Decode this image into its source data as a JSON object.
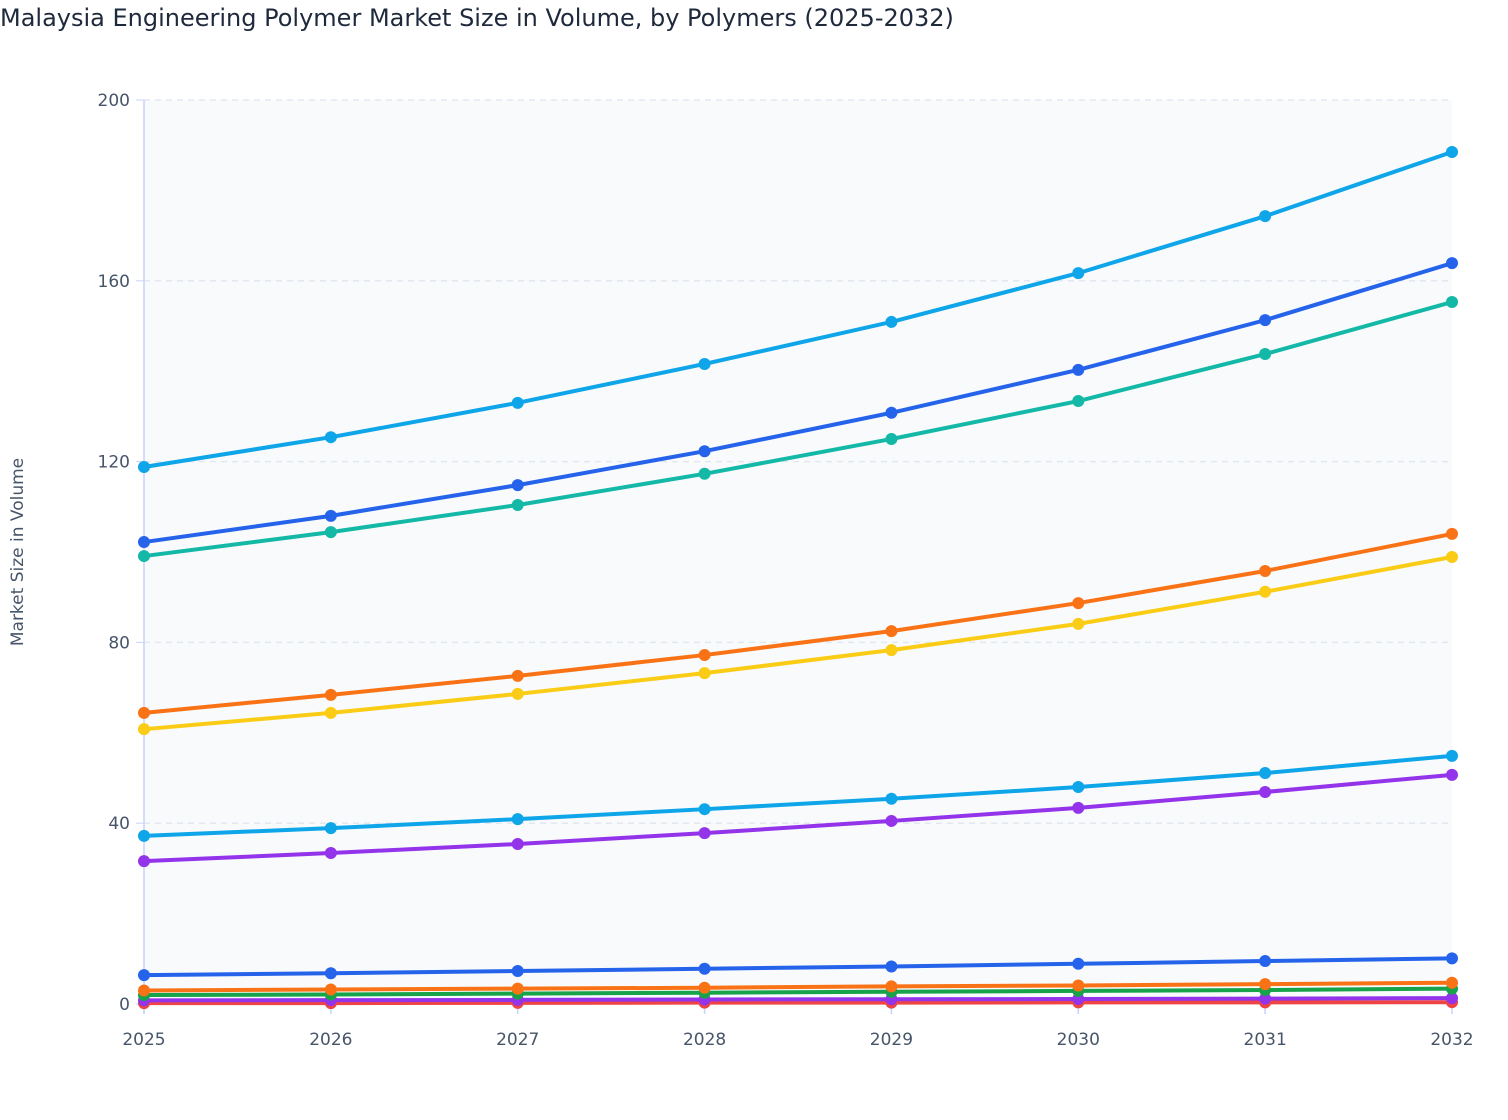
{
  "chart_data": {
    "type": "line",
    "title": "Malaysia Engineering Polymer Market Size in Volume, by Polymers (2025-2032)",
    "xlabel": "",
    "ylabel": "Market Size in Volume",
    "x": [
      "2025",
      "2026",
      "2027",
      "2028",
      "2029",
      "2030",
      "2031",
      "2032"
    ],
    "ylim": [
      0,
      200
    ],
    "yticks": [
      0,
      40,
      80,
      120,
      160,
      200
    ],
    "grid": true,
    "legend": "none",
    "series": [
      {
        "color": "#0ea5e9",
        "values": [
          118.8,
          125.4,
          133.0,
          141.6,
          150.9,
          161.7,
          174.3,
          188.5
        ]
      },
      {
        "color": "#2563eb",
        "values": [
          102.2,
          108.0,
          114.8,
          122.3,
          130.8,
          140.3,
          151.3,
          163.9
        ]
      },
      {
        "color": "#14b8a6",
        "values": [
          99.1,
          104.4,
          110.4,
          117.3,
          125.0,
          133.4,
          143.8,
          155.3
        ]
      },
      {
        "color": "#f97316",
        "values": [
          64.4,
          68.4,
          72.6,
          77.2,
          82.5,
          88.7,
          95.8,
          104.0
        ]
      },
      {
        "color": "#facc15",
        "values": [
          60.8,
          64.4,
          68.6,
          73.2,
          78.3,
          84.1,
          91.2,
          98.9
        ]
      },
      {
        "color": "#0ea5e9",
        "values": [
          37.2,
          38.9,
          40.9,
          43.1,
          45.4,
          48.0,
          51.1,
          54.9
        ]
      },
      {
        "color": "#9333ea",
        "values": [
          31.6,
          33.4,
          35.4,
          37.8,
          40.5,
          43.4,
          46.9,
          50.7
        ]
      },
      {
        "color": "#2563eb",
        "values": [
          6.4,
          6.8,
          7.3,
          7.8,
          8.3,
          8.9,
          9.5,
          10.1
        ]
      },
      {
        "color": "#f97316",
        "values": [
          3.0,
          3.2,
          3.4,
          3.6,
          3.9,
          4.1,
          4.4,
          4.7
        ]
      },
      {
        "color": "#16a34a",
        "values": [
          2.0,
          2.1,
          2.3,
          2.5,
          2.7,
          2.9,
          3.1,
          3.4
        ]
      },
      {
        "color": "#ef4444",
        "values": [
          0.2,
          0.2,
          0.25,
          0.3,
          0.3,
          0.35,
          0.35,
          0.4
        ]
      },
      {
        "color": "#9333ea",
        "values": [
          0.8,
          0.85,
          0.9,
          1.0,
          1.05,
          1.1,
          1.2,
          1.3
        ]
      }
    ]
  }
}
